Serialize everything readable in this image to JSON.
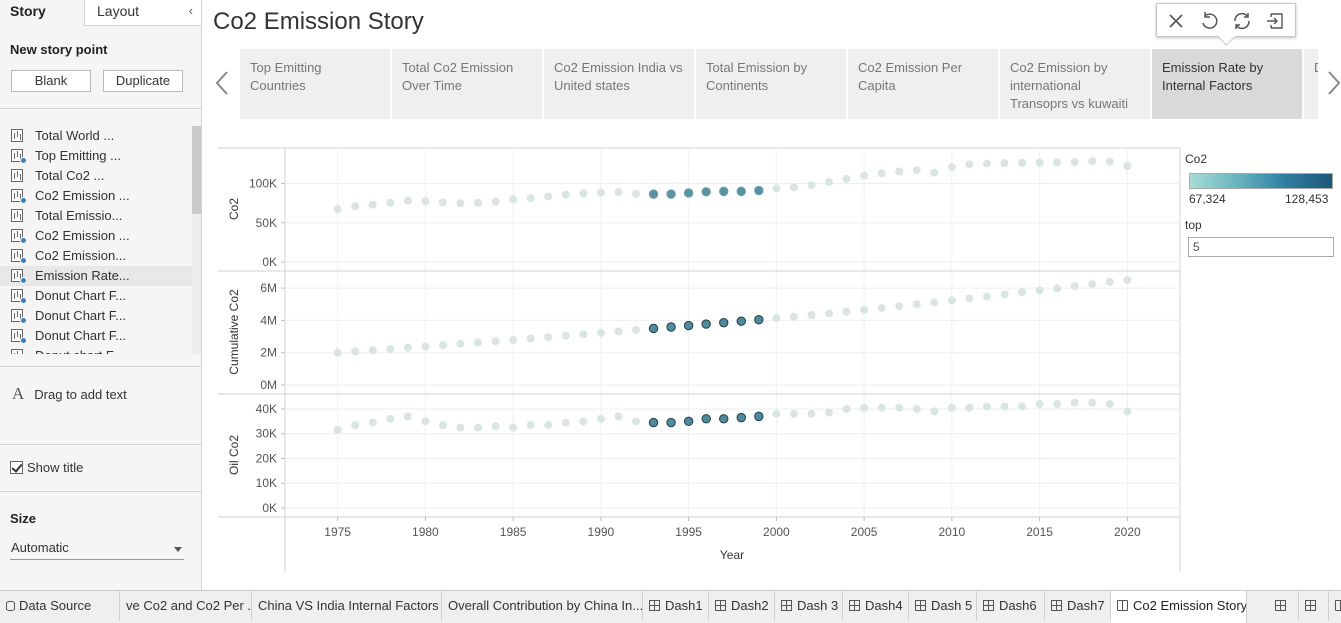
{
  "left_pane": {
    "tab_story": "Story",
    "tab_layout": "Layout",
    "new_story_point": "New story point",
    "blank_button": "Blank",
    "duplicate_button": "Duplicate",
    "story_points": [
      {
        "label": "Total World ...",
        "updated": false
      },
      {
        "label": "Top Emitting ...",
        "updated": true
      },
      {
        "label": "Total Co2 ...",
        "updated": false
      },
      {
        "label": "Co2 Emission ...",
        "updated": true
      },
      {
        "label": "Total Emissio...",
        "updated": false
      },
      {
        "label": "Co2 Emission ...",
        "updated": true
      },
      {
        "label": " Co2 Emission...",
        "updated": true
      },
      {
        "label": "Emission Rate...",
        "updated": true,
        "active": true
      },
      {
        "label": "Donut Chart F...",
        "updated": true
      },
      {
        "label": "Donut Chart F...",
        "updated": true
      },
      {
        "label": "Donut Chart F...",
        "updated": true
      },
      {
        "label": "Donut chart F...",
        "updated": true
      }
    ],
    "drag_text": "Drag to add text",
    "show_title": "Show title",
    "size_label": "Size",
    "size_value": "Automatic"
  },
  "story": {
    "title": "Co2 Emission Story",
    "points": [
      "Top Emitting Countries",
      "Total Co2 Emission Over Time",
      "Co2 Emission India vs United states",
      "Total Emission by Continents",
      "Co2 Emission Per Capita",
      "Co2 Emission by international Transoprs vs kuwaiti",
      "Emission Rate by Internal Factors",
      "D C"
    ],
    "active_index": 6
  },
  "legend": {
    "title": "Co2",
    "min": "67,324",
    "max": "128,453",
    "filter_title": "top",
    "filter_value": "5",
    "colors": {
      "light": "#a6ddd6",
      "dark": "#1c5778",
      "faded": "#d6e2df"
    }
  },
  "chart_data": {
    "type": "scatter",
    "xlabel": "Year",
    "x_ticks": [
      "1975",
      "1980",
      "1985",
      "1990",
      "1995",
      "2000",
      "2005",
      "2010",
      "2015",
      "2020"
    ],
    "x": [
      1975,
      1976,
      1977,
      1978,
      1979,
      1980,
      1981,
      1982,
      1983,
      1984,
      1985,
      1986,
      1987,
      1988,
      1989,
      1990,
      1991,
      1992,
      1993,
      1994,
      1995,
      1996,
      1997,
      1998,
      1999,
      2000,
      2001,
      2002,
      2003,
      2004,
      2005,
      2006,
      2007,
      2008,
      2009,
      2010,
      2011,
      2012,
      2013,
      2014,
      2015,
      2016,
      2017,
      2018,
      2019,
      2020
    ],
    "highlight_range": [
      1993,
      1999
    ],
    "panels": [
      {
        "ylabel": "Co2",
        "y_ticks": [
          "0K",
          "50K",
          "100K"
        ],
        "y_tick_values": [
          0,
          50000,
          100000
        ],
        "ylim": [
          0,
          130000
        ],
        "values": [
          67324,
          71000,
          73000,
          75500,
          78000,
          77500,
          76000,
          75000,
          75500,
          77000,
          80000,
          81500,
          83500,
          86000,
          87500,
          88500,
          89000,
          87000,
          86500,
          86500,
          88000,
          89500,
          90000,
          90000,
          91000,
          94000,
          95000,
          98000,
          102000,
          106000,
          110000,
          113000,
          115500,
          117000,
          114000,
          121000,
          124500,
          125500,
          126000,
          126500,
          126500,
          127000,
          127500,
          128453,
          128000,
          122500
        ]
      },
      {
        "ylabel": "Cumulative Co2",
        "y_ticks": [
          "0M",
          "2M",
          "4M",
          "6M"
        ],
        "y_tick_values": [
          0,
          2000000,
          4000000,
          6000000
        ],
        "ylim": [
          0,
          6500000
        ],
        "values": [
          2000000,
          2070000,
          2150000,
          2230000,
          2310000,
          2390000,
          2470000,
          2550000,
          2630000,
          2710000,
          2790000,
          2880000,
          2960000,
          3050000,
          3140000,
          3230000,
          3320000,
          3410000,
          3500000,
          3590000,
          3680000,
          3770000,
          3860000,
          3950000,
          4040000,
          4140000,
          4230000,
          4330000,
          4430000,
          4540000,
          4650000,
          4760000,
          4880000,
          5000000,
          5110000,
          5230000,
          5360000,
          5480000,
          5610000,
          5740000,
          5860000,
          5990000,
          6120000,
          6250000,
          6380000,
          6500000
        ]
      },
      {
        "ylabel": "Oil Co2",
        "y_ticks": [
          "0K",
          "10K",
          "20K",
          "30K",
          "40K"
        ],
        "y_tick_values": [
          0,
          10000,
          20000,
          30000,
          40000
        ],
        "ylim": [
          0,
          42000
        ],
        "values": [
          31500,
          33500,
          34500,
          36000,
          37000,
          35000,
          33500,
          32500,
          32500,
          33000,
          32500,
          33500,
          33500,
          34500,
          35000,
          36000,
          37000,
          35000,
          34500,
          34500,
          35000,
          36000,
          36000,
          36500,
          37000,
          38000,
          38000,
          38000,
          38500,
          40000,
          40500,
          40500,
          40500,
          40000,
          39000,
          40500,
          40500,
          41000,
          41000,
          41000,
          42000,
          42000,
          42500,
          42500,
          42000,
          39000
        ]
      }
    ]
  },
  "sheet_tabs": [
    {
      "label": "Data Source",
      "icon": "database-icon"
    },
    {
      "label": "ve Co2 and Co2 Per ...",
      "icon": ""
    },
    {
      "label": "China VS India Internal Factors",
      "icon": ""
    },
    {
      "label": "Overall Contribution by  China In...",
      "icon": ""
    },
    {
      "label": "Dash1",
      "icon": "dashboard-icon"
    },
    {
      "label": "Dash2",
      "icon": "dashboard-icon"
    },
    {
      "label": "Dash 3",
      "icon": "dashboard-icon"
    },
    {
      "label": "Dash4",
      "icon": "dashboard-icon"
    },
    {
      "label": "Dash 5",
      "icon": "dashboard-icon"
    },
    {
      "label": "Dash6",
      "icon": "dashboard-icon"
    },
    {
      "label": "Dash7",
      "icon": "dashboard-icon"
    },
    {
      "label": "Co2 Emission Story",
      "icon": "story-icon",
      "active": true
    }
  ]
}
